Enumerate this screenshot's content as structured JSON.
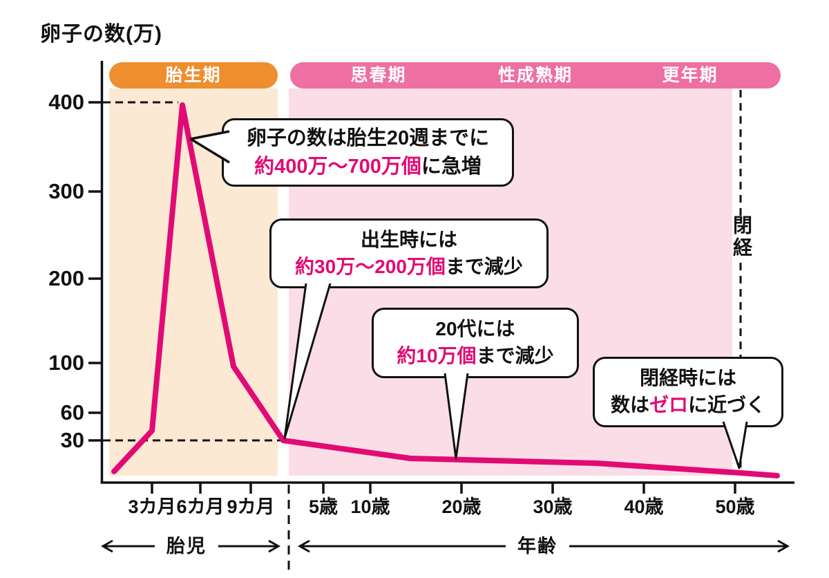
{
  "title": "卵子の数(万)",
  "colors": {
    "accent_pink": "#e20a74",
    "band_pink": "#ee6fa2",
    "band_pink_bg": "#fadde7",
    "band_orange": "#ef8e2f",
    "band_orange_bg": "#fbe9d3",
    "ink": "#111111"
  },
  "bands": {
    "fetal": "胎生期",
    "puberty": "思春期",
    "maturity": "性成熟期",
    "climacteric": "更年期"
  },
  "y_axis": {
    "tick_labels": [
      "400",
      "300",
      "200",
      "100",
      "60",
      "30"
    ]
  },
  "x_axis": {
    "tick_labels": [
      "3カ月",
      "6カ月",
      "9カ月",
      "5歳",
      "10歳",
      "20歳",
      "30歳",
      "40歳",
      "50歳"
    ]
  },
  "menopause_marker": "閉経",
  "axis_groups": {
    "fetus": "胎児",
    "age": "年齢"
  },
  "bubbles": [
    {
      "line1": "卵子の数は胎生20週までに",
      "line2_pre": "",
      "line2_highlight": "約400万～700万個",
      "line2_rest": "に急増"
    },
    {
      "line1": "出生時には",
      "line2_pre": "",
      "line2_highlight": "約30万～200万個",
      "line2_rest": "まで減少"
    },
    {
      "line1": "20代には",
      "line2_pre": "",
      "line2_highlight": "約10万個",
      "line2_rest": "まで減少"
    },
    {
      "line1": "閉経時には",
      "line2_pre": "数は",
      "line2_highlight": "ゼロ",
      "line2_rest": "に近づく"
    }
  ],
  "chart_data": {
    "type": "line",
    "title": "卵子の数(万)",
    "ylabel": "卵子の数(万)",
    "y_ticks": [
      400,
      300,
      200,
      100,
      60,
      30
    ],
    "x_ticks": [
      "3カ月",
      "6カ月",
      "9カ月",
      "5歳",
      "10歳",
      "20歳",
      "30歳",
      "40歳",
      "50歳"
    ],
    "x_axis_sections": [
      "胎児",
      "年齢"
    ],
    "life_stages": [
      "胎生期",
      "思春期",
      "性成熟期",
      "更年期"
    ],
    "series": [
      {
        "name": "卵子の数",
        "unit": "万個",
        "points": [
          {
            "x": "胎生0カ月",
            "y": 1
          },
          {
            "x": "胎生3カ月",
            "y": 35
          },
          {
            "x": "胎生20週",
            "y": 400
          },
          {
            "x": "胎生8カ月",
            "y": 95
          },
          {
            "x": "出生時",
            "y": 30
          },
          {
            "x": "10歳",
            "y": 13
          },
          {
            "x": "30歳",
            "y": 10
          },
          {
            "x": "閉経(50歳頃)",
            "y": 2
          },
          {
            "x": "55歳前後",
            "y": 1
          }
        ]
      }
    ],
    "annotations": [
      "卵子の数は胎生20週までに約400万～700万個に急増",
      "出生時には約30万～200万個まで減少",
      "20代には約10万個まで減少",
      "閉経時には数はゼロに近づく"
    ],
    "markers": [
      "閉経 (50歳付近の破線)"
    ],
    "dashed_guides_y": [
      400,
      30
    ],
    "pixel_polyline": [
      [
        165,
        682
      ],
      [
        220,
        623
      ],
      [
        264,
        152
      ],
      [
        338,
        530
      ],
      [
        410,
        637
      ],
      [
        594,
        663
      ],
      [
        864,
        670
      ],
      [
        1072,
        684
      ],
      [
        1125,
        688
      ]
    ]
  }
}
